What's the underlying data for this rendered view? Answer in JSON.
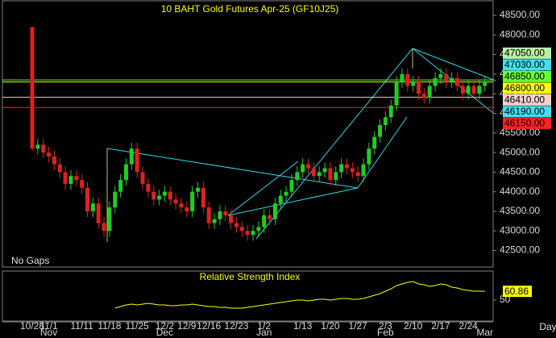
{
  "chart_data": [
    {
      "type": "candlestick",
      "title": "10 BAHT Gold Futures Apr-25 (GF10J25)",
      "note": "No Gaps",
      "x_unit": "Day",
      "up_color": "#22cc22",
      "down_color": "#e02020",
      "categories": [
        "10/28",
        null,
        null,
        "11/1",
        null,
        null,
        null,
        null,
        null,
        "11/11",
        null,
        null,
        null,
        null,
        "11/18",
        null,
        null,
        null,
        null,
        "11/25",
        null,
        null,
        null,
        null,
        "12/2",
        null,
        null,
        null,
        "12/9",
        null,
        null,
        null,
        "12/16",
        null,
        null,
        null,
        null,
        "12/23",
        null,
        null,
        null,
        null,
        "1/2",
        null,
        null,
        null,
        null,
        null,
        null,
        "1/13",
        null,
        null,
        null,
        null,
        "1/20",
        null,
        null,
        null,
        null,
        "1/27",
        null,
        null,
        null,
        null,
        "2/3",
        null,
        null,
        null,
        null,
        "2/10",
        null,
        null,
        null,
        null,
        "2/17",
        null,
        null,
        null,
        null,
        "2/24",
        null,
        null,
        null
      ],
      "months": [
        null,
        null,
        null,
        "Nov",
        null,
        null,
        null,
        null,
        null,
        null,
        null,
        null,
        null,
        null,
        null,
        null,
        null,
        null,
        null,
        null,
        null,
        null,
        null,
        null,
        "Dec",
        null,
        null,
        null,
        null,
        null,
        null,
        null,
        null,
        null,
        null,
        null,
        null,
        null,
        null,
        null,
        null,
        null,
        "Jan",
        null,
        null,
        null,
        null,
        null,
        null,
        null,
        null,
        null,
        null,
        null,
        null,
        null,
        null,
        null,
        null,
        null,
        null,
        null,
        null,
        null,
        "Feb",
        null,
        null,
        null,
        null,
        null,
        null,
        null,
        null,
        null,
        null,
        null,
        null,
        null,
        null,
        null,
        null,
        null,
        "Mar"
      ],
      "open": [
        48200,
        45100,
        45200,
        45000,
        44900,
        44700,
        44500,
        44200,
        44400,
        44300,
        44100,
        43500,
        43700,
        43200,
        43000,
        43600,
        44000,
        44300,
        44700,
        45100,
        44500,
        44200,
        44000,
        43800,
        43900,
        44000,
        43800,
        43700,
        43600,
        43500,
        44000,
        44100,
        43600,
        43200,
        43300,
        43500,
        43400,
        43200,
        43100,
        43000,
        42900,
        43000,
        43100,
        43400,
        43300,
        43700,
        43900,
        44000,
        44300,
        44500,
        44700,
        44600,
        44400,
        44500,
        44600,
        44300,
        44500,
        44700,
        44600,
        44500,
        44400,
        44700,
        45100,
        45400,
        45700,
        45900,
        46200,
        46800,
        47000,
        46700,
        46800,
        46500,
        46400,
        46700,
        46900,
        47000,
        46800,
        46900,
        46700,
        46500,
        46700,
        46500,
        46700
      ],
      "high": [
        48200,
        45350,
        45350,
        45150,
        45050,
        44850,
        44650,
        44550,
        44550,
        44450,
        44250,
        43850,
        43850,
        43350,
        43750,
        44150,
        44450,
        44850,
        45250,
        45250,
        44650,
        44350,
        44150,
        44050,
        44150,
        44150,
        43950,
        43850,
        43750,
        44150,
        44250,
        44250,
        43750,
        43450,
        43650,
        43650,
        43550,
        43350,
        43250,
        43150,
        43150,
        43250,
        43550,
        43550,
        43850,
        44050,
        44150,
        44450,
        44650,
        44850,
        44850,
        44750,
        44650,
        44750,
        44750,
        44650,
        44850,
        44850,
        44750,
        44650,
        44850,
        45250,
        45550,
        45850,
        46050,
        46350,
        46950,
        47150,
        47150,
        46950,
        46950,
        46650,
        46850,
        47050,
        47150,
        47150,
        47050,
        47050,
        46850,
        46850,
        46850,
        46850,
        46950
      ],
      "low": [
        45050,
        44950,
        44850,
        44750,
        44550,
        44350,
        44050,
        44050,
        44150,
        43950,
        43350,
        43350,
        43050,
        42850,
        42850,
        43450,
        43850,
        44150,
        44550,
        44350,
        44050,
        43850,
        43650,
        43650,
        43750,
        43650,
        43550,
        43450,
        43350,
        43350,
        43850,
        43450,
        43050,
        43050,
        43150,
        43250,
        43050,
        42950,
        42850,
        42750,
        42750,
        42850,
        42950,
        43150,
        43150,
        43550,
        43750,
        43850,
        44150,
        44350,
        44450,
        44250,
        44250,
        44350,
        44150,
        44150,
        44350,
        44450,
        44350,
        44250,
        44250,
        44550,
        44950,
        45250,
        45550,
        45750,
        46050,
        46650,
        46550,
        46550,
        46350,
        46250,
        46250,
        46550,
        46750,
        46650,
        46650,
        46550,
        46350,
        46350,
        46350,
        46350,
        46550
      ],
      "close": [
        45100,
        45200,
        45000,
        44900,
        44700,
        44500,
        44200,
        44400,
        44300,
        44100,
        43500,
        43700,
        43200,
        43000,
        43600,
        44000,
        44300,
        44700,
        45100,
        44500,
        44200,
        44000,
        43800,
        43900,
        44000,
        43800,
        43700,
        43600,
        43500,
        44000,
        44100,
        43600,
        43200,
        43300,
        43500,
        43400,
        43200,
        43100,
        43000,
        42900,
        43000,
        43100,
        43400,
        43300,
        43700,
        43900,
        44000,
        44300,
        44500,
        44700,
        44600,
        44400,
        44500,
        44600,
        44300,
        44500,
        44700,
        44600,
        44500,
        44400,
        44700,
        45100,
        45400,
        45700,
        45900,
        46200,
        46800,
        47000,
        46700,
        46800,
        46500,
        46400,
        46700,
        46900,
        47000,
        46800,
        46900,
        46700,
        46500,
        46700,
        46500,
        46700,
        46800
      ],
      "ylim": [
        42100,
        48850
      ],
      "yticks": [
        {
          "value": 42500,
          "label": "42500.00"
        },
        {
          "value": 43000,
          "label": "43000.00"
        },
        {
          "value": 43500,
          "label": "43500.00"
        },
        {
          "value": 44000,
          "label": "44000.00"
        },
        {
          "value": 44500,
          "label": "44500.00"
        },
        {
          "value": 45000,
          "label": "45000.00"
        },
        {
          "value": 45500,
          "label": "45500.00"
        },
        {
          "value": 46000,
          "label": "46000.00"
        },
        {
          "value": 46500,
          "label": "46500.00"
        },
        {
          "value": 47000,
          "label": "47000.00"
        },
        {
          "value": 47500,
          "label": "47500.00"
        },
        {
          "value": 48000,
          "label": "48000.00"
        },
        {
          "value": 48500,
          "label": "48500.00"
        }
      ],
      "levels": [
        {
          "value": 47050,
          "label": "47050.00",
          "color": "#b8f0a8",
          "line": false
        },
        {
          "value": 47030,
          "label": "47030.00",
          "color": "#40e0f0",
          "line": false
        },
        {
          "value": 46850,
          "label": "46850.00",
          "color": "#66ff33",
          "line": true
        },
        {
          "value": 46800,
          "label": "46800.00",
          "color": "#ffff00",
          "line": true
        },
        {
          "value": 46410,
          "label": "46410.00",
          "color": "#f4d0d0",
          "line": true
        },
        {
          "value": 46190,
          "label": "46190.00",
          "color": "#40e0f0",
          "line": false
        },
        {
          "value": 46150,
          "label": "46150.00",
          "color": "#ff2020",
          "line": true
        }
      ]
    },
    {
      "type": "line",
      "title": "Relative Strength Index",
      "color": "#ffff00",
      "values": [
        null,
        null,
        null,
        null,
        null,
        null,
        null,
        null,
        null,
        null,
        null,
        null,
        null,
        null,
        null,
        40,
        42,
        44,
        45,
        44,
        45,
        46,
        45,
        44,
        44,
        43,
        43,
        44,
        44,
        45,
        44,
        43,
        42,
        42,
        41,
        41,
        40,
        40,
        40,
        41,
        42,
        43,
        44,
        45,
        46,
        47,
        48,
        49,
        50,
        50,
        49,
        50,
        51,
        51,
        50,
        51,
        52,
        52,
        51,
        51,
        52,
        54,
        56,
        58,
        61,
        64,
        68,
        70,
        72,
        73,
        70,
        69,
        67,
        68,
        70,
        69,
        66,
        65,
        63,
        62,
        61,
        61,
        60.86
      ],
      "last_label": "60.86",
      "ylim": [
        25,
        85
      ],
      "yticks": [
        50
      ]
    }
  ]
}
